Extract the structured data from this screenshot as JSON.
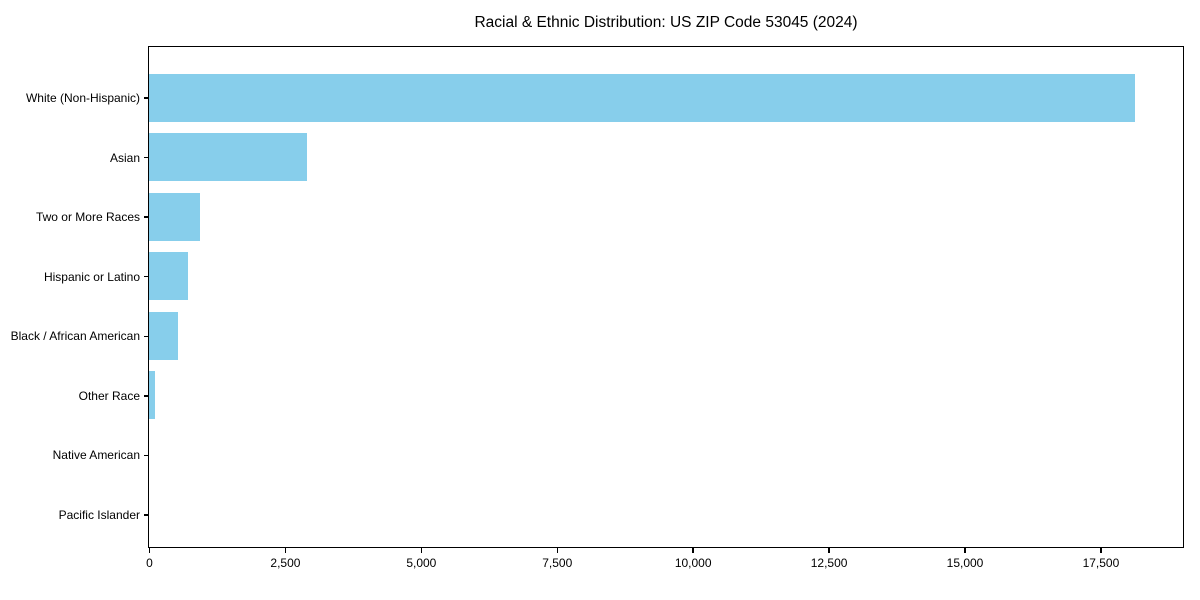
{
  "figure": {
    "title": "Racial & Ethnic Distribution: US ZIP Code 53045 (2024)"
  },
  "chart_data": {
    "type": "bar",
    "orientation": "horizontal",
    "title": "Racial & Ethnic Distribution: US ZIP Code 53045 (2024)",
    "xlabel": "",
    "ylabel": "",
    "categories": [
      "White (Non-Hispanic)",
      "Asian",
      "Two or More Races",
      "Hispanic or Latino",
      "Black / African American",
      "Other Race",
      "Native American",
      "Pacific Islander"
    ],
    "values": [
      18140,
      2900,
      930,
      720,
      540,
      110,
      0,
      0
    ],
    "xlim": [
      0,
      19000
    ],
    "xticks": [
      0,
      2500,
      5000,
      7500,
      10000,
      12500,
      15000,
      17500
    ],
    "xtick_labels": [
      "0",
      "2,500",
      "5,000",
      "7,500",
      "10,000",
      "12,500",
      "15,000",
      "17,500"
    ],
    "bar_color": "#87CEEB",
    "spine_color": "#000000",
    "grid": false,
    "legend": "none",
    "sort_order": "descending"
  }
}
